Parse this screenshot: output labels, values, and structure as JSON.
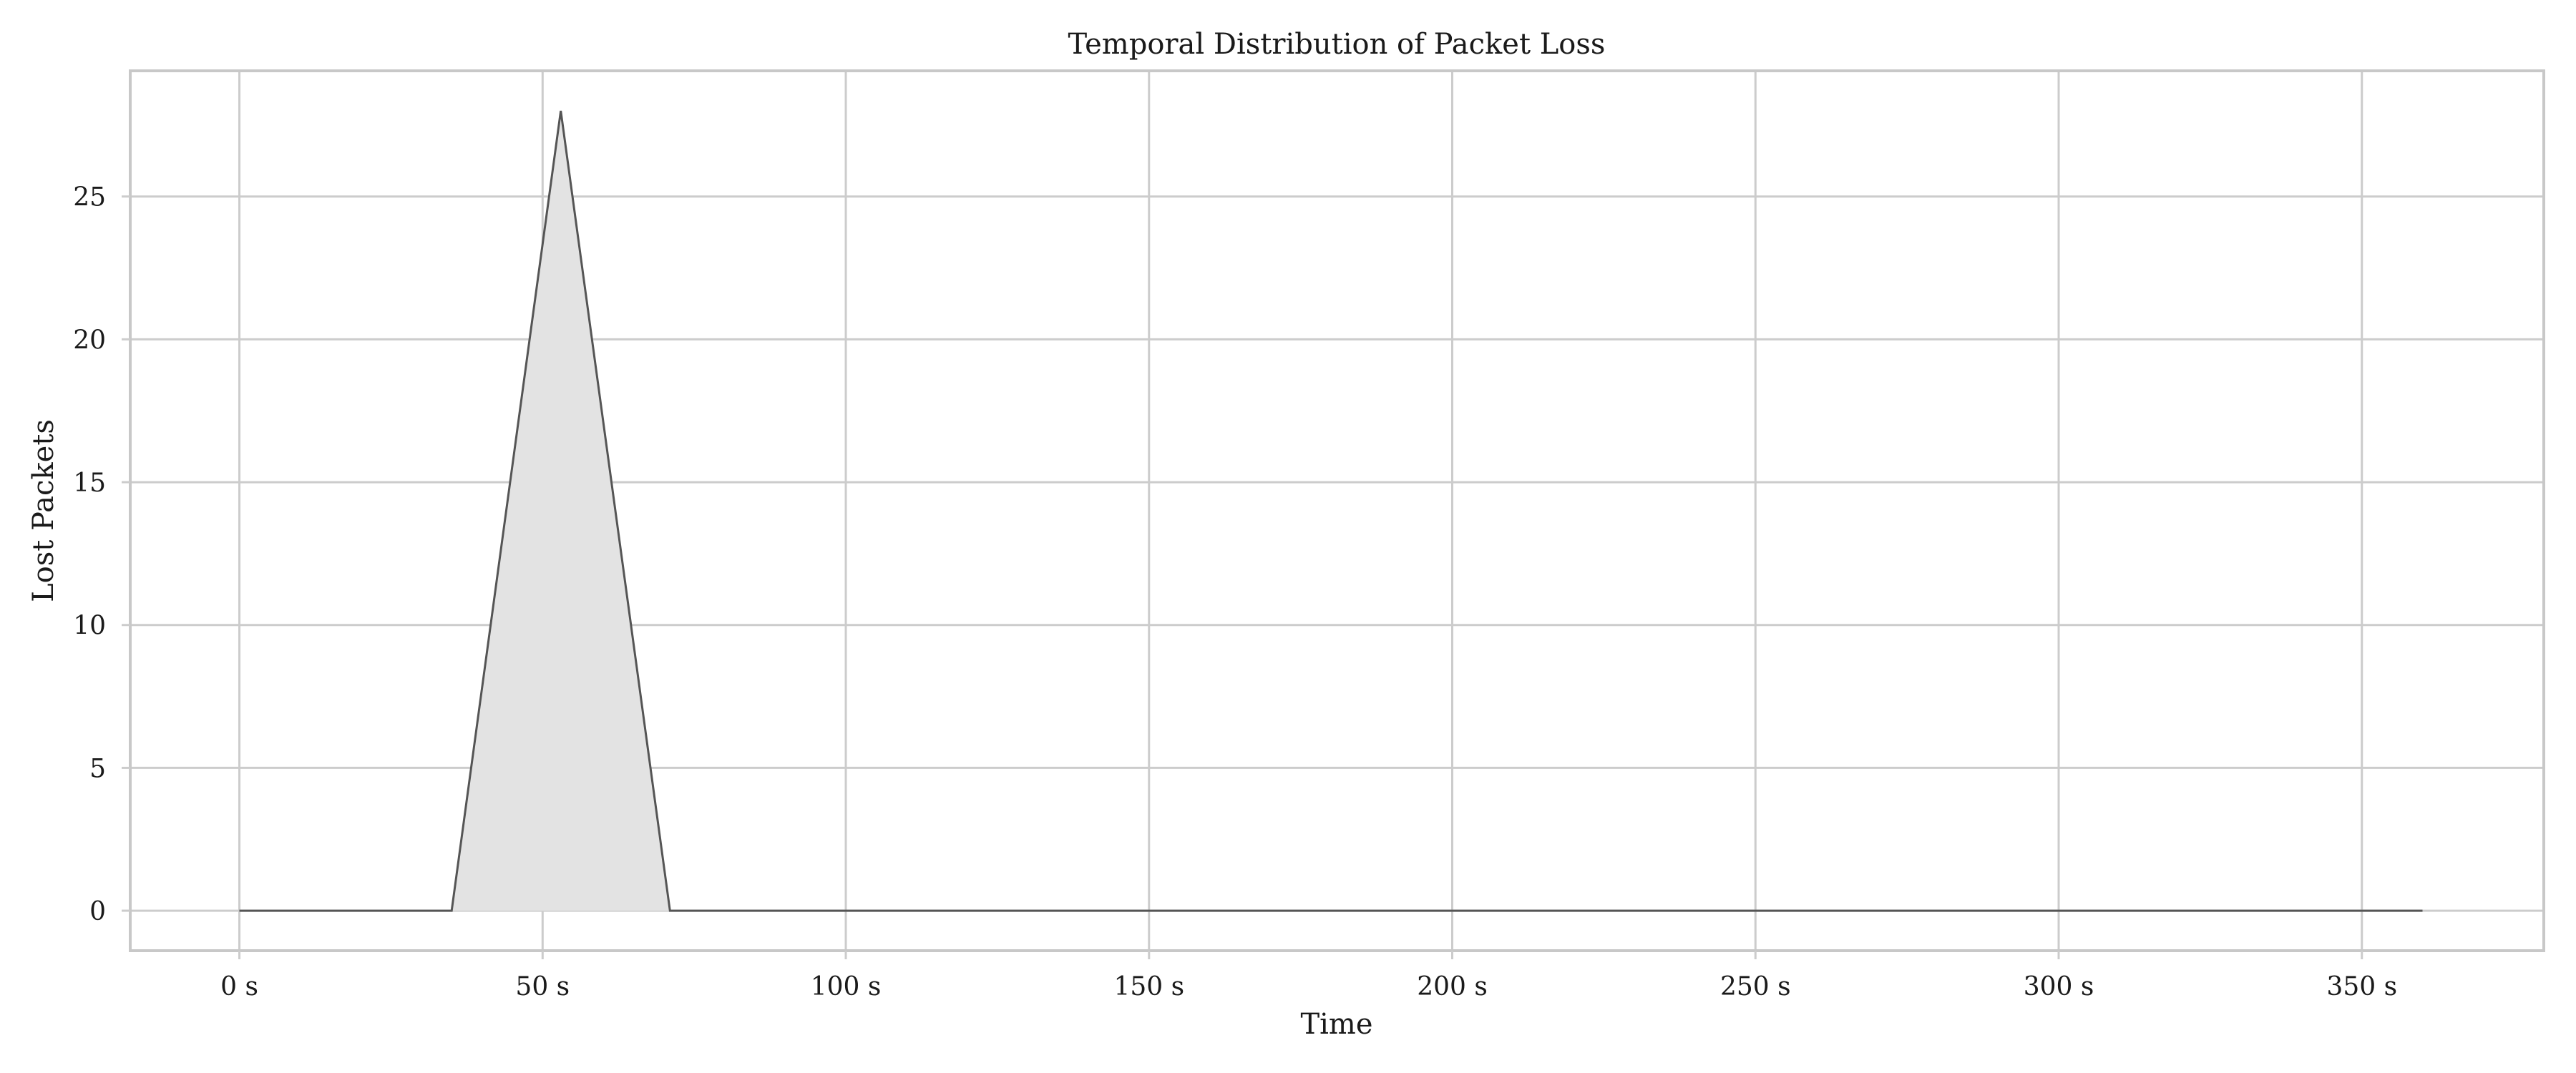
{
  "chart_data": {
    "type": "area",
    "title": "Temporal Distribution of Packet Loss",
    "xlabel": "Time",
    "ylabel": "Lost Packets",
    "x_ticks": [
      0,
      50,
      100,
      150,
      200,
      250,
      300,
      350
    ],
    "x_tick_labels": [
      "0 s",
      "50 s",
      "100 s",
      "150 s",
      "200 s",
      "250 s",
      "300 s",
      "350 s"
    ],
    "y_ticks": [
      0,
      5,
      10,
      15,
      20,
      25
    ],
    "y_tick_labels": [
      "0",
      "5",
      "10",
      "15",
      "20",
      "25"
    ],
    "xlim": [
      -18,
      380
    ],
    "ylim": [
      -1.4,
      29.4
    ],
    "grid": true,
    "series": [
      {
        "x": [
          0,
          35,
          53,
          71,
          360
        ],
        "y": [
          0,
          0,
          28,
          0,
          0
        ]
      }
    ],
    "colors": {
      "line": "#555555",
      "fill": "#e3e3e3"
    }
  }
}
